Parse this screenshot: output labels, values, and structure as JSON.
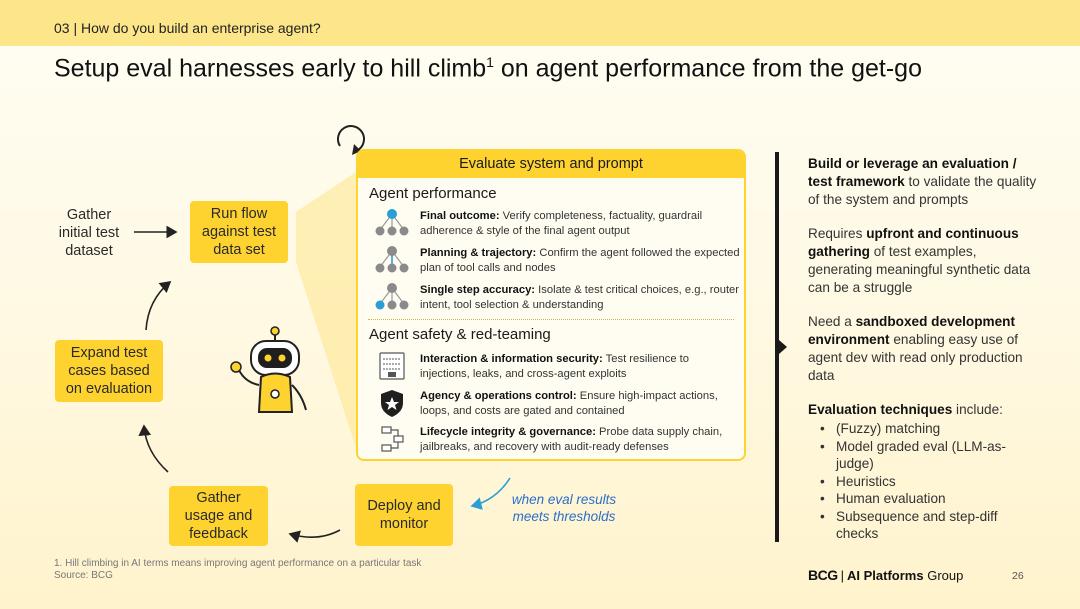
{
  "header": {
    "section": "03 | How do you build an enterprise agent?",
    "title_main": "Setup eval harnesses early to hill climb",
    "title_sup": "1",
    "title_rest": " on agent performance from the get-go"
  },
  "cycle": {
    "gather_initial": "Gather initial test dataset",
    "run_flow": "Run flow against test data set",
    "expand_cases": "Expand test cases based on evaluation",
    "gather_usage": "Gather usage and feedback",
    "deploy_monitor": "Deploy and monitor",
    "threshold_note": "when eval results meets thresholds"
  },
  "panel": {
    "header": "Evaluate system and prompt",
    "performance_title": "Agent performance",
    "performance_items": [
      {
        "icon": "tree-network-icon",
        "label": "Final outcome:",
        "text": " Verify completeness, factuality, guardrail adherence & style of the final agent output"
      },
      {
        "icon": "tree-path-icon",
        "label": "Planning & trajectory:",
        "text": " Confirm the agent followed the expected plan of tool calls and nodes"
      },
      {
        "icon": "tree-node-icon",
        "label": "Single step accuracy:",
        "text": " Isolate & test critical choices, e.g., router intent, tool selection & understanding"
      }
    ],
    "safety_title": "Agent safety & red-teaming",
    "safety_items": [
      {
        "icon": "server-lock-icon",
        "label": "Interaction & information security:",
        "text": " Test resilience to injections, leaks, and cross-agent exploits"
      },
      {
        "icon": "shield-star-icon",
        "label": "Agency & operations control:",
        "text": " Ensure high-impact actions, loops, and costs are gated and contained"
      },
      {
        "icon": "lifecycle-flow-icon",
        "label": "Lifecycle integrity & governance:",
        "text": " Probe data supply chain, jailbreaks, and recovery with audit-ready defenses"
      }
    ]
  },
  "right": {
    "p1_bold": "Build or leverage an evaluation / test framework",
    "p1_rest": " to validate the quality of the system and prompts",
    "p2_pre": "Requires ",
    "p2_bold": "upfront and continuous gathering",
    "p2_rest": " of test examples, generating meaningful synthetic data can be a struggle",
    "p3_pre": "Need a ",
    "p3_bold": "sandboxed development environment",
    "p3_rest": " enabling easy use of agent dev with read only production data",
    "p4_bold": "Evaluation techniques",
    "p4_rest": " include:",
    "techniques": [
      "(Fuzzy) matching",
      "Model graded eval (LLM-as-judge)",
      "Heuristics",
      "Human evaluation",
      "Subsequence and step-diff checks"
    ]
  },
  "footer": {
    "footnote": "1. Hill climbing in AI terms means improving agent performance on a particular task",
    "source": "Source: BCG",
    "logo_bcg": "BCG",
    "logo_sep": "|",
    "logo_bold": "AI Platforms",
    "logo_rest": " Group",
    "page": "26"
  },
  "colors": {
    "accent_yellow": "#fed330",
    "band_yellow": "#fde58a",
    "note_blue": "#2a6fc9",
    "icon_teal": "#2a9fd6",
    "icon_gray": "#8a8a8a"
  }
}
